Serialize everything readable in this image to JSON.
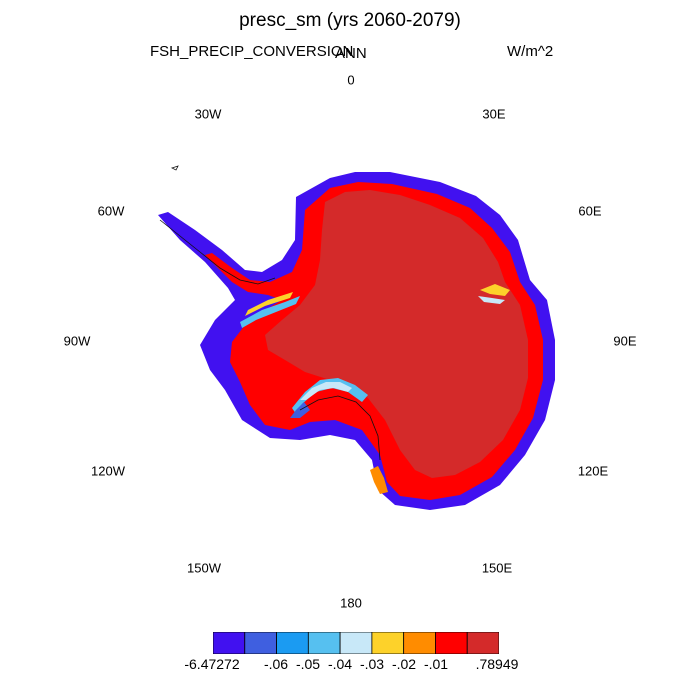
{
  "header": {
    "title": "presc_sm (yrs 2060-2079)",
    "variable": "FSH_PRECIP_CONVERSION",
    "period": "ANN",
    "units": "W/m^2"
  },
  "map": {
    "projection": "south-polar-stereographic",
    "region": "Antarctica",
    "longitude_labels": [
      "0",
      "30E",
      "60E",
      "90E",
      "120E",
      "150E",
      "180",
      "150W",
      "120W",
      "90W",
      "60W",
      "30W"
    ]
  },
  "colorbar": {
    "bin_colors": [
      "#4111f0",
      "#3f5fe0",
      "#1b9bf2",
      "#56c0f0",
      "#c8e8f8",
      "#fdd22a",
      "#ff8c00",
      "#ff0000",
      "#d42a2a"
    ],
    "labels": [
      "-6.47272",
      "-.06",
      "-.05",
      "-.04",
      "-.03",
      "-.02",
      "-.01",
      ".78949"
    ]
  },
  "colors": {
    "interior": "#d42a2a",
    "coastal_red": "#ff0000",
    "coast_edge": "#4111f0"
  }
}
